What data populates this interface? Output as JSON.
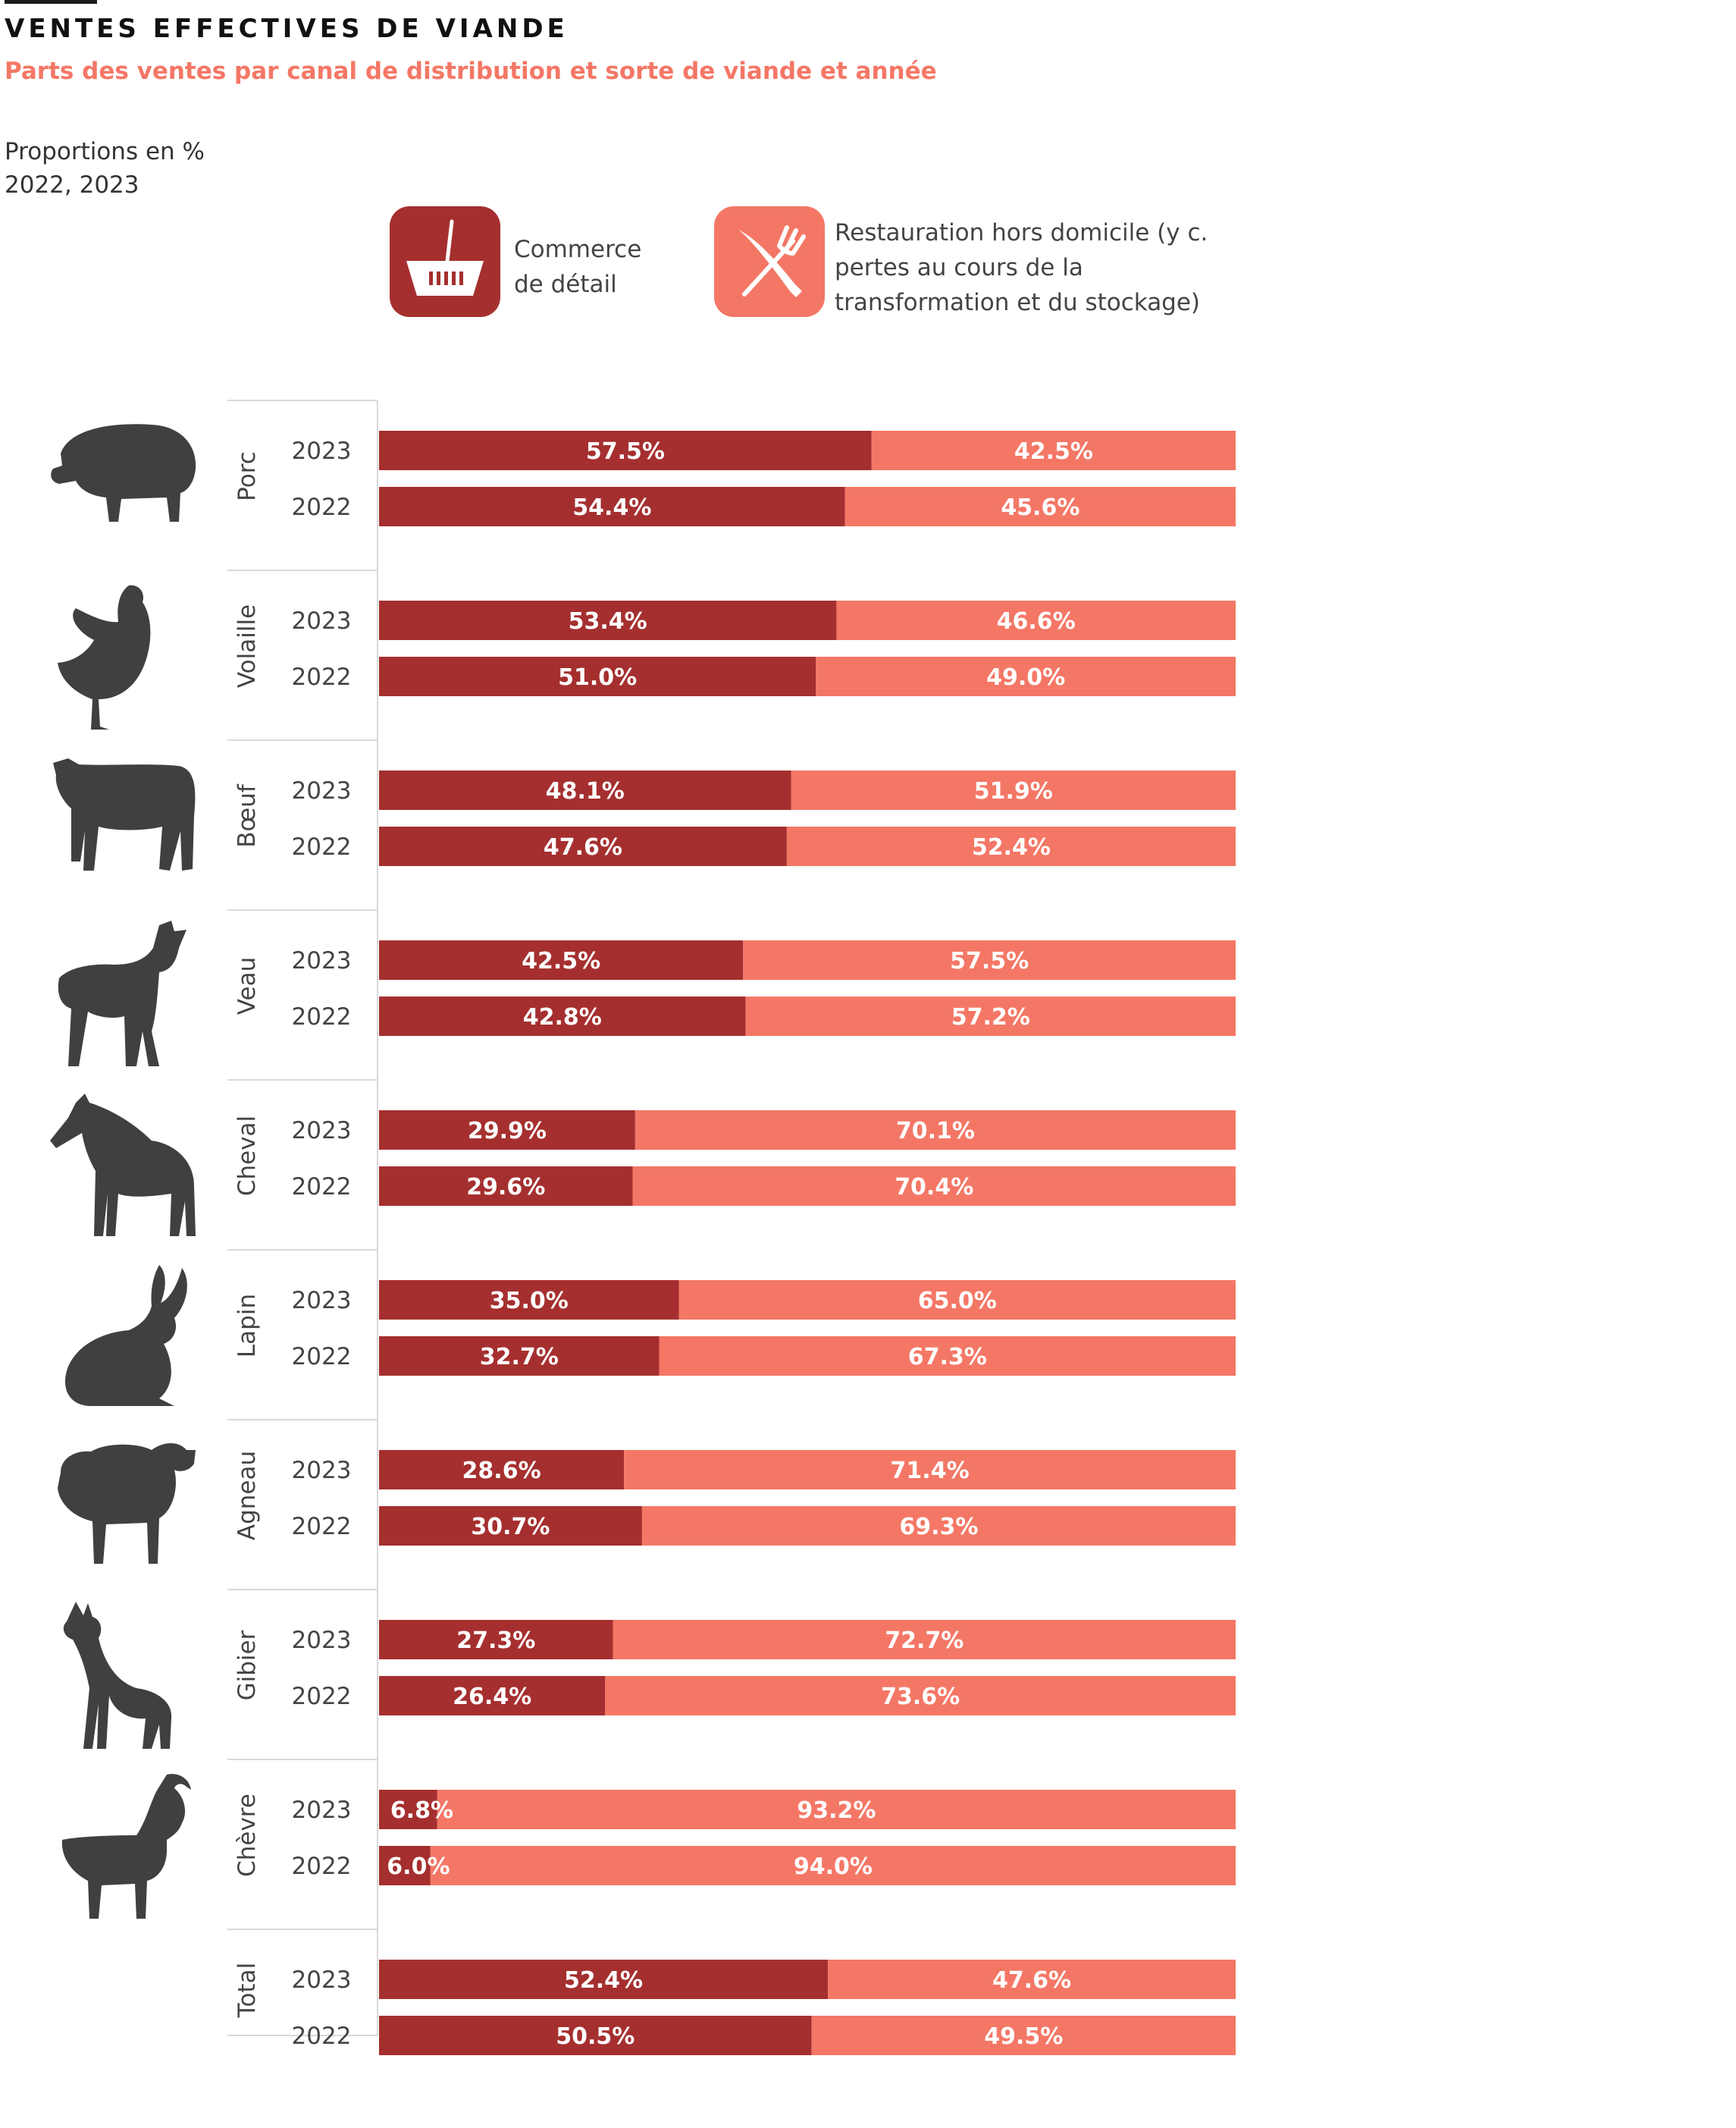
{
  "header": {
    "title": "VENTES EFFECTIVES DE VIANDE",
    "subtitle": "Parts des ventes par canal de distribution et sorte de viande et année",
    "unit_note": "Proportions en %",
    "years_note": "2022, 2023"
  },
  "legend": {
    "retail_label_line1": "Commerce",
    "retail_label_line2": "de détail",
    "food_label_line1": "Restauration hors domicile (y c.",
    "food_label_line2": "pertes au cours de la",
    "food_label_line3": "transformation et du stockage)",
    "retail_icon": "shopping-basket-icon",
    "food_icon": "knife-fork-icon"
  },
  "colors": {
    "retail": "#a52f2f",
    "food_service": "#f47766",
    "icon": "#404040"
  },
  "chart_data": {
    "type": "bar",
    "orientation": "horizontal",
    "stacked": true,
    "normalized_100": true,
    "series_names": [
      "Commerce de détail",
      "Restauration hors domicile (y c. pertes au cours de la transformation et du stockage)"
    ],
    "groups": [
      {
        "name": "Porc",
        "icon": "pig-icon",
        "rows": [
          {
            "year": "2023",
            "retail": 57.5,
            "food": 42.5,
            "retail_label": "57.5%",
            "food_label": "42.5%"
          },
          {
            "year": "2022",
            "retail": 54.4,
            "food": 45.6,
            "retail_label": "54.4%",
            "food_label": "45.6%"
          }
        ]
      },
      {
        "name": "Volaille",
        "icon": "chicken-icon",
        "rows": [
          {
            "year": "2023",
            "retail": 53.4,
            "food": 46.6,
            "retail_label": "53.4%",
            "food_label": "46.6%"
          },
          {
            "year": "2022",
            "retail": 51.0,
            "food": 49.0,
            "retail_label": "51.0%",
            "food_label": "49.0%"
          }
        ]
      },
      {
        "name": "Bœuf",
        "icon": "cow-icon",
        "rows": [
          {
            "year": "2023",
            "retail": 48.1,
            "food": 51.9,
            "retail_label": "48.1%",
            "food_label": "51.9%"
          },
          {
            "year": "2022",
            "retail": 47.6,
            "food": 52.4,
            "retail_label": "47.6%",
            "food_label": "52.4%"
          }
        ]
      },
      {
        "name": "Veau",
        "icon": "calf-icon",
        "rows": [
          {
            "year": "2023",
            "retail": 42.5,
            "food": 57.5,
            "retail_label": "42.5%",
            "food_label": "57.5%"
          },
          {
            "year": "2022",
            "retail": 42.8,
            "food": 57.2,
            "retail_label": "42.8%",
            "food_label": "57.2%"
          }
        ]
      },
      {
        "name": "Cheval",
        "icon": "horse-icon",
        "rows": [
          {
            "year": "2023",
            "retail": 29.9,
            "food": 70.1,
            "retail_label": "29.9%",
            "food_label": "70.1%"
          },
          {
            "year": "2022",
            "retail": 29.6,
            "food": 70.4,
            "retail_label": "29.6%",
            "food_label": "70.4%"
          }
        ]
      },
      {
        "name": "Lapin",
        "icon": "rabbit-icon",
        "rows": [
          {
            "year": "2023",
            "retail": 35.0,
            "food": 65.0,
            "retail_label": "35.0%",
            "food_label": "65.0%"
          },
          {
            "year": "2022",
            "retail": 32.7,
            "food": 67.3,
            "retail_label": "32.7%",
            "food_label": "67.3%"
          }
        ]
      },
      {
        "name": "Agneau",
        "icon": "sheep-icon",
        "rows": [
          {
            "year": "2023",
            "retail": 28.6,
            "food": 71.4,
            "retail_label": "28.6%",
            "food_label": "71.4%"
          },
          {
            "year": "2022",
            "retail": 30.7,
            "food": 69.3,
            "retail_label": "30.7%",
            "food_label": "69.3%"
          }
        ]
      },
      {
        "name": "Gibier",
        "icon": "deer-icon",
        "rows": [
          {
            "year": "2023",
            "retail": 27.3,
            "food": 72.7,
            "retail_label": "27.3%",
            "food_label": "72.7%"
          },
          {
            "year": "2022",
            "retail": 26.4,
            "food": 73.6,
            "retail_label": "26.4%",
            "food_label": "73.6%"
          }
        ]
      },
      {
        "name": "Chèvre",
        "icon": "goat-icon",
        "rows": [
          {
            "year": "2023",
            "retail": 6.8,
            "food": 93.2,
            "retail_label": "6.8%",
            "food_label": "93.2%"
          },
          {
            "year": "2022",
            "retail": 6.0,
            "food": 94.0,
            "retail_label": "6.0%",
            "food_label": "94.0%"
          }
        ]
      },
      {
        "name": "Total",
        "icon": "",
        "rows": [
          {
            "year": "2023",
            "retail": 52.4,
            "food": 47.6,
            "retail_label": "52.4%",
            "food_label": "47.6%"
          },
          {
            "year": "2022",
            "retail": 50.5,
            "food": 49.5,
            "retail_label": "50.5%",
            "food_label": "49.5%"
          }
        ]
      }
    ]
  }
}
